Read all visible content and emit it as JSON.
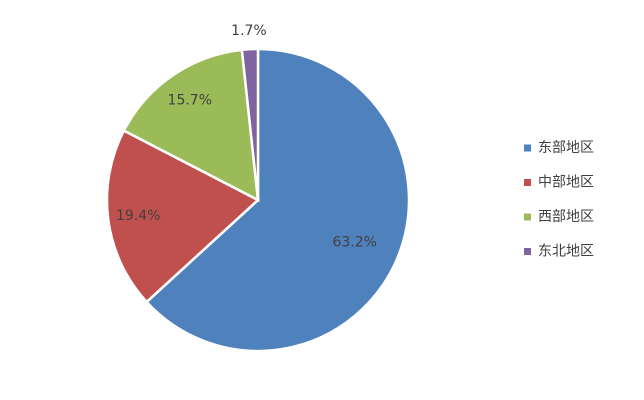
{
  "chart_data": {
    "type": "pie",
    "categories": [
      "东部地区",
      "中部地区",
      "西部地区",
      "东北地区"
    ],
    "values": [
      63.2,
      19.4,
      15.7,
      1.7
    ],
    "value_labels": [
      "63.2%",
      "19.4%",
      "15.7%",
      "1.7%"
    ],
    "colors": [
      "#4f81bd",
      "#c0504d",
      "#9bbb59",
      "#8064a2"
    ],
    "legend": "right"
  }
}
